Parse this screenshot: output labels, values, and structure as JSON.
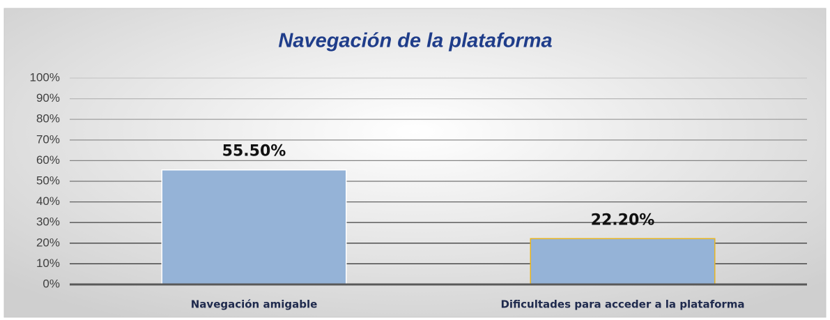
{
  "chart_data": {
    "type": "bar",
    "title": "Navegación de la plataforma",
    "categories": [
      "Navegación amigable",
      "Dificultades para acceder a la plataforma"
    ],
    "values": [
      55.5,
      22.2
    ],
    "value_labels": [
      "55.50%",
      "22.20%"
    ],
    "color": "#95b3d7",
    "edge_colors": [
      "#ffffff",
      "#e6b422"
    ],
    "ylim": [
      0,
      100
    ],
    "yticks": [
      {
        "value": 0,
        "label": "0%"
      },
      {
        "value": 10,
        "label": "10%"
      },
      {
        "value": 20,
        "label": "20%"
      },
      {
        "value": 30,
        "label": "30%"
      },
      {
        "value": 40,
        "label": "40%"
      },
      {
        "value": 50,
        "label": "50%"
      },
      {
        "value": 60,
        "label": "60%"
      },
      {
        "value": 70,
        "label": "70%"
      },
      {
        "value": 80,
        "label": "80%"
      },
      {
        "value": 90,
        "label": "90%"
      },
      {
        "value": 100,
        "label": "100%"
      }
    ],
    "grid": true
  }
}
